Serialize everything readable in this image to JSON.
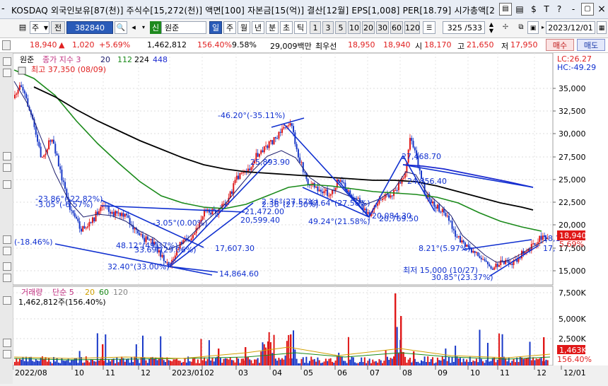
{
  "window": {
    "dash": "-",
    "title": "KOSDAQ 외국인보유[87(천)] 주식수[15,272(천)] 액면[100] 자본금[15(억)] 결산[12월] EPS[1,008] PER[18.79] 시가총액[2",
    "controls": [
      "▤",
      "▤",
      "$",
      "T",
      "?",
      "-",
      "▢",
      "×"
    ]
  },
  "toolbar": {
    "list_icon": "▤",
    "type_select": "주",
    "prev_label": "전",
    "code": "382840",
    "search_icon": "🔍",
    "speaker_icon": "◂",
    "sector_badge": "신",
    "stock_name": "원준",
    "periods": [
      "일",
      "주",
      "월",
      "년",
      "분",
      "초",
      "틱"
    ],
    "active_period": "일",
    "intervals": [
      "1",
      "3",
      "5",
      "10",
      "20",
      "30",
      "60",
      "120"
    ],
    "page_counter": "325 /533",
    "date": "2023/12/01"
  },
  "quote": {
    "price": "18,940",
    "change": "1,020",
    "change_pct": "+5.69%",
    "volume": "1,462,812",
    "volume_ratio": "156.40%",
    "turnover": "9.58%",
    "value": "29,009백만",
    "best_ask_label": "최우선",
    "best_ask": "18,950",
    "best_bid": "18,940",
    "open_label": "시",
    "open": "18,170",
    "high_label": "고",
    "high": "21,650",
    "low_label": "저",
    "low": "17,950",
    "buy_label": "매수",
    "sell_label": "매도"
  },
  "price_panel": {
    "legend_stock": "원준",
    "legend_ma_label": "종가 지수 3",
    "legend_ma": [
      "20",
      "112",
      "224",
      "448"
    ],
    "max_label": "최고 37,350 (08/09)",
    "lc": "LC:26.27",
    "hc": "HC:-49.29",
    "current_price_tag": "18,940",
    "current_pct_tag": "5.69%",
    "annotations": [
      "-46.20°(-35.11%)",
      "27,468.70",
      "25,893.90",
      "24,856.40",
      "-23.86°(-22.82%)",
      "-3.05°(-6.57%)",
      "21,472.00",
      "20,599.40",
      "2.36°(27.57%)",
      "2.36°(27.50%)",
      "-47.64°(27.58%)",
      "20,084.30",
      "20,769.50",
      "49.24°(21.58%)",
      "-3.05°(0.00%)",
      "48.12°(49.37%)",
      "33.69°(29.06%)",
      "17,607.30",
      "(-18.46%)",
      "32.40°(33.00%)",
      "14,864.60",
      "8.21°(5.97%)",
      "최저 15,000 (10/27)",
      "30.85°(23.37%)",
      "18,1",
      "17,"
    ],
    "y_ticks": [
      "35,000",
      "32,500",
      "30,000",
      "27,500",
      "25,000",
      "22,500",
      "20,000",
      "17,500",
      "15,000"
    ]
  },
  "volume_panel": {
    "legend_label": "거래량",
    "legend_ma_label": "단순 5",
    "legend_ma": [
      "20",
      "60",
      "120"
    ],
    "current_volume": "1,462,812주(156.40%)",
    "y_ticks": [
      "7,500K",
      "5,000K",
      "2,500K"
    ],
    "current_tag": "1,463K",
    "current_pct_tag": "156.40%"
  },
  "x_axis": [
    "2022/08",
    "10",
    "11",
    "12",
    "2023/01",
    "02",
    "03",
    "04",
    "05",
    "06",
    "07",
    "08",
    "09",
    "10",
    "11",
    "12",
    "12/01"
  ],
  "colors": {
    "candle_up": "#e01818",
    "candle_down": "#1838c8",
    "ma20": "#1c1c6c",
    "ma112": "#1a8a1a",
    "ma224": "#000000",
    "ma448": "#1c2ad0",
    "trendline": "#1030d0",
    "volume_up": "#e01818",
    "volume_down": "#1838c8"
  }
}
